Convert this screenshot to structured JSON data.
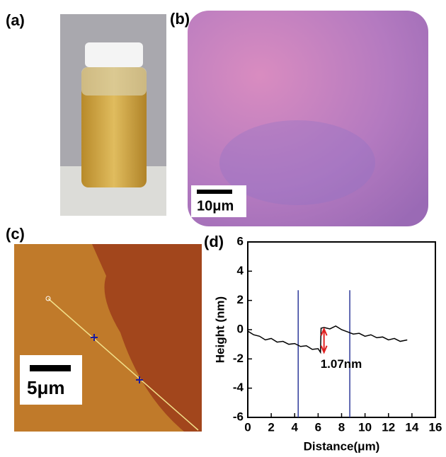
{
  "panels": {
    "a": {
      "label": "(a)"
    },
    "b": {
      "label": "(b)",
      "scale_bar": "10μm"
    },
    "c": {
      "label": "(c)",
      "scale_bar": "5μm"
    },
    "d": {
      "label": "(d)"
    }
  },
  "chart_data": {
    "type": "line",
    "xlabel": "Distance(μm)",
    "ylabel": "Height (nm)",
    "x": [
      0,
      0.5,
      1,
      1.5,
      2,
      2.5,
      3,
      3.5,
      4,
      4.5,
      5,
      5.5,
      6,
      6.2,
      6.25,
      6.5,
      7,
      7.5,
      8,
      8.5,
      9,
      9.5,
      10,
      10.5,
      11,
      11.5,
      12,
      12.5,
      13,
      13.6
    ],
    "values": [
      -0.1,
      -0.35,
      -0.45,
      -0.7,
      -0.6,
      -0.85,
      -0.8,
      -1.0,
      -0.95,
      -1.15,
      -1.1,
      -1.35,
      -1.3,
      -1.55,
      0.1,
      0.15,
      0.05,
      0.25,
      0.0,
      -0.15,
      -0.3,
      -0.25,
      -0.45,
      -0.35,
      -0.55,
      -0.5,
      -0.7,
      -0.6,
      -0.8,
      -0.7
    ],
    "color": "#000000",
    "xlim": [
      0,
      16
    ],
    "ylim": [
      -6,
      6
    ],
    "xticks": [
      0,
      2,
      4,
      6,
      8,
      10,
      12,
      14,
      16
    ],
    "yticks": [
      -6,
      -4,
      -2,
      0,
      2,
      4,
      6
    ],
    "vlines": [
      4.3,
      8.7
    ],
    "vline_color": "#2e3a9a",
    "annotation": "1.07nm"
  }
}
